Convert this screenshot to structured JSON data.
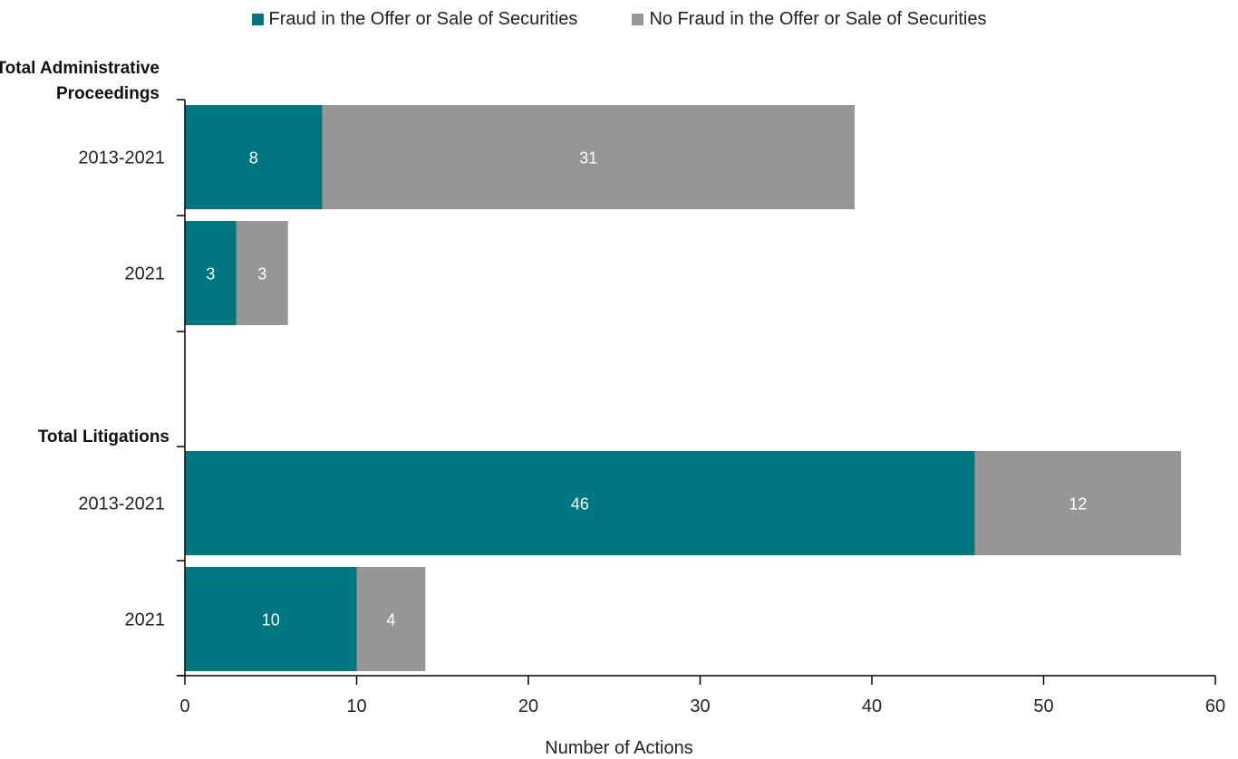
{
  "legend": {
    "fraud_label": "Fraud in the Offer or Sale of Securities",
    "nofraud_label": "No Fraud in the Offer or Sale of Securities"
  },
  "colors": {
    "fraud": "#007680",
    "nofraud": "#969696"
  },
  "chart_data": {
    "type": "bar",
    "orientation": "horizontal",
    "stacked": true,
    "xlabel": "Number of Actions",
    "xlim": [
      0,
      60
    ],
    "xticks": [
      "0",
      "10",
      "20",
      "30",
      "40",
      "50",
      "60"
    ],
    "groups": [
      {
        "label": "Total Administrative Proceedings",
        "categories": [
          "2013-2021",
          "2021"
        ]
      },
      {
        "label": "Total Litigations",
        "categories": [
          "2013-2021",
          "2021"
        ]
      }
    ],
    "series": [
      {
        "name": "Fraud in the Offer or Sale of Securities",
        "values": [
          8,
          3,
          46,
          10
        ]
      },
      {
        "name": "No Fraud in the Offer or Sale of Securities",
        "values": [
          31,
          3,
          12,
          4
        ]
      }
    ],
    "grid": false,
    "legend_position": "top"
  }
}
